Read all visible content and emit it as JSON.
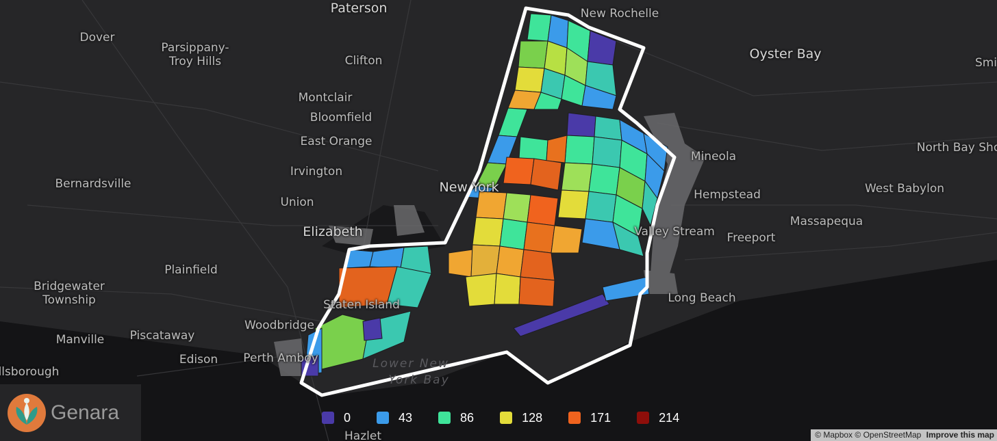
{
  "map": {
    "places": [
      {
        "name": "Paterson",
        "big": true
      },
      {
        "name": "New Rochelle",
        "big": false
      },
      {
        "name": "Dover",
        "big": false
      },
      {
        "name": "Parsippany-\nTroy Hills",
        "big": false
      },
      {
        "name": "Clifton",
        "big": false
      },
      {
        "name": "Oyster Bay",
        "big": true
      },
      {
        "name": "Smi",
        "big": false
      },
      {
        "name": "Montclair",
        "big": false
      },
      {
        "name": "Bloomfield",
        "big": false
      },
      {
        "name": "East Orange",
        "big": false
      },
      {
        "name": "Irvington",
        "big": false
      },
      {
        "name": "Bernardsville",
        "big": false
      },
      {
        "name": "Union",
        "big": false
      },
      {
        "name": "Elizabeth",
        "big": true
      },
      {
        "name": "Mineola",
        "big": false
      },
      {
        "name": "Hempstead",
        "big": false
      },
      {
        "name": "West Babylon",
        "big": false
      },
      {
        "name": "North Bay Sho",
        "big": false
      },
      {
        "name": "Massapequa",
        "big": false
      },
      {
        "name": "Freeport",
        "big": false
      },
      {
        "name": "Valley Stream",
        "big": false
      },
      {
        "name": "Long Beach",
        "big": false
      },
      {
        "name": "Plainfield",
        "big": false
      },
      {
        "name": "Bridgewater\nTownship",
        "big": false
      },
      {
        "name": "Woodbridge",
        "big": false
      },
      {
        "name": "Piscataway",
        "big": false
      },
      {
        "name": "Manville",
        "big": false
      },
      {
        "name": "Edison",
        "big": false
      },
      {
        "name": "Perth Amboy",
        "big": false
      },
      {
        "name": "llsborough",
        "big": false
      },
      {
        "name": "Hazlet",
        "big": false
      },
      {
        "name": "New York",
        "big": true
      },
      {
        "name": "Staten Island",
        "big": false
      }
    ],
    "water_labels": [
      "Lower New",
      "York Bay"
    ]
  },
  "legend": {
    "items": [
      {
        "label": "0",
        "color": "#4a3aa8"
      },
      {
        "label": "43",
        "color": "#3b9bea"
      },
      {
        "label": "86",
        "color": "#3fe49a"
      },
      {
        "label": "128",
        "color": "#e3dc3a"
      },
      {
        "label": "171",
        "color": "#f0631e"
      },
      {
        "label": "214",
        "color": "#8e0e0a"
      }
    ]
  },
  "logo": {
    "text": "Genara"
  },
  "attribution": {
    "mapbox": "© Mapbox",
    "osm": "© OpenStreetMap",
    "improve": "Improve this map"
  }
}
